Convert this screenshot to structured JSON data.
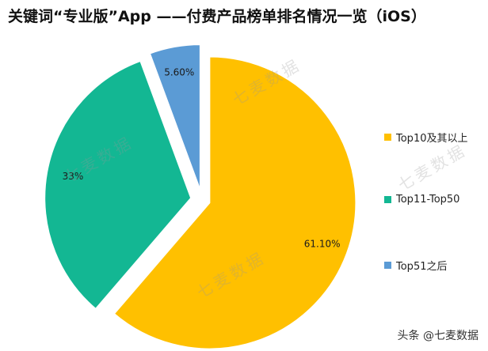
{
  "chart_data": {
    "type": "pie",
    "title": "关键词“专业版”App ——付费产品榜单排名情况一览（iOS）",
    "categories": [
      "Top10及其以上",
      "Top11-Top50",
      "Top51之后"
    ],
    "values": [
      61.1,
      33.0,
      5.6
    ],
    "data_labels": [
      "61.10%",
      "33%",
      "5.60%"
    ],
    "colors": [
      "#FFC000",
      "#13B793",
      "#5B9BD5"
    ],
    "legend_position": "right",
    "exploded": true
  },
  "watermark": {
    "text": "七麦数据"
  },
  "footer": {
    "brand": "头条 @七麦数据"
  }
}
